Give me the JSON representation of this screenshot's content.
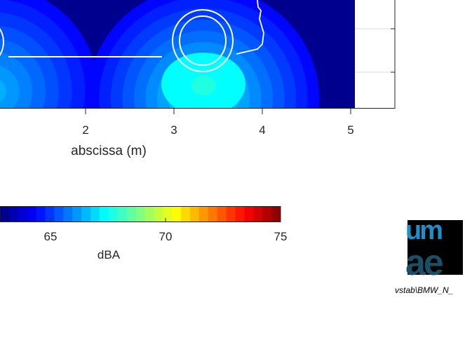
{
  "chart_data": {
    "type": "heatmap",
    "subtype": "filled-contour",
    "xlabel": "abscissa (m)",
    "xticks": [
      2,
      3,
      4,
      5
    ],
    "colorbar": {
      "label": "dBA",
      "ticks": [
        65,
        70,
        75
      ],
      "range": [
        62.8,
        75
      ],
      "colormap": "jet",
      "levels": 31
    },
    "background_color": "#00008f",
    "overlay_line_color": "#ffffff"
  },
  "source_label": "vstab\\BMW_N_",
  "logo_text": "umrae"
}
